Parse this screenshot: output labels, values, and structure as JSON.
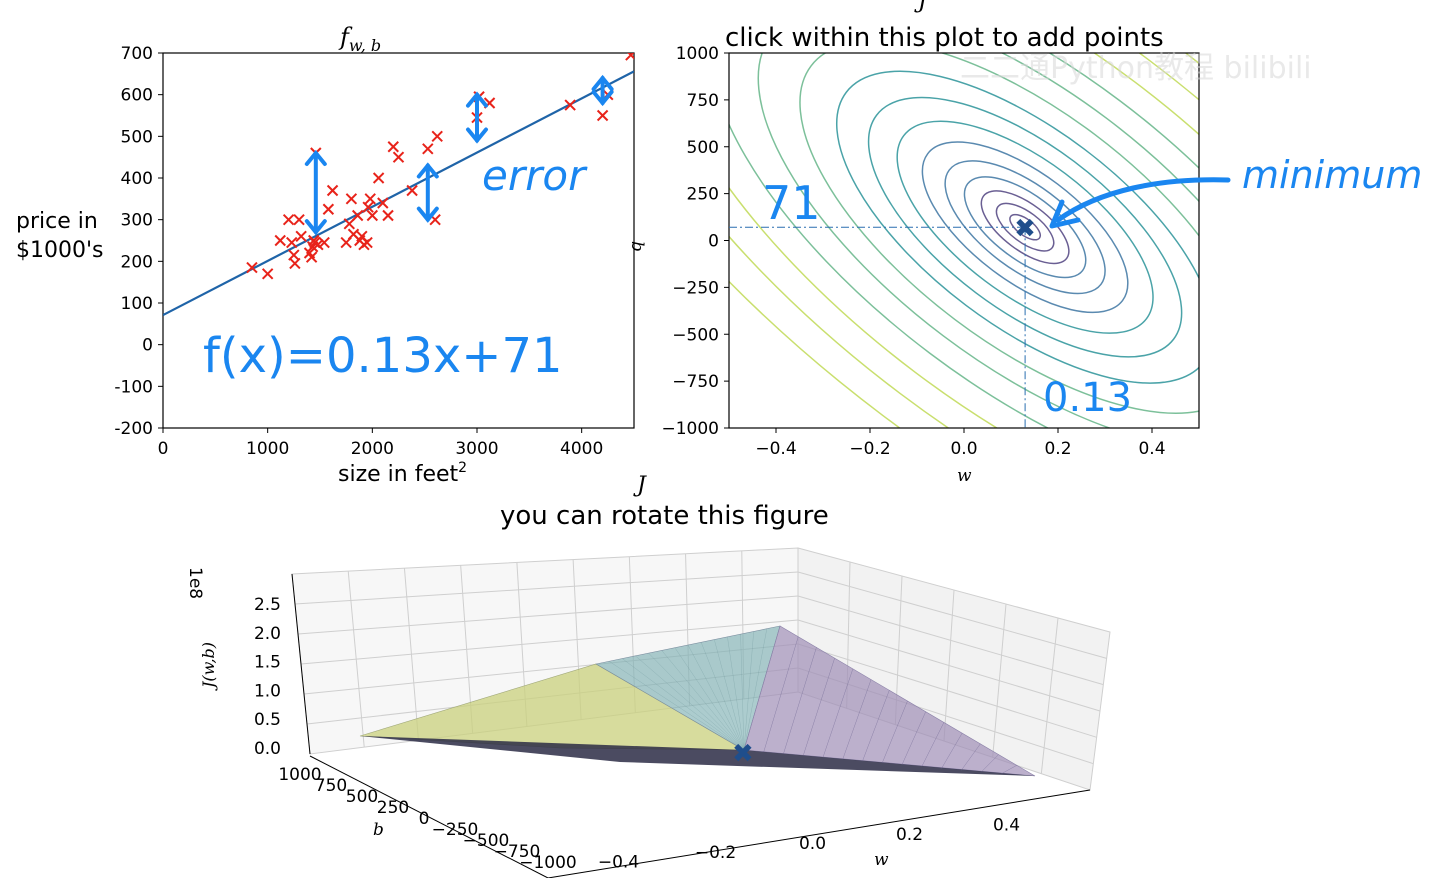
{
  "chart_data": [
    {
      "type": "scatter",
      "title": "f",
      "title_subscript": "w, b",
      "xlabel": "size in feet",
      "xlabel_superscript": "2",
      "ylabel_lines": [
        "price in",
        "$1000's"
      ],
      "xlim": [
        0,
        4500
      ],
      "ylim": [
        -200,
        700
      ],
      "xticks": [
        "0",
        "1000",
        "2000",
        "3000",
        "4000"
      ],
      "xtick_values": [
        0,
        1000,
        2000,
        3000,
        4000
      ],
      "yticks": [
        "700",
        "600",
        "500",
        "400",
        "300",
        "200",
        "100",
        "0",
        "-100",
        "-200"
      ],
      "ytick_values": [
        700,
        600,
        500,
        400,
        300,
        200,
        100,
        0,
        -100,
        -200
      ],
      "points_x": [
        850,
        1000,
        1120,
        1200,
        1230,
        1250,
        1260,
        1300,
        1320,
        1400,
        1420,
        1430,
        1440,
        1450,
        1460,
        1480,
        1540,
        1580,
        1620,
        1750,
        1780,
        1800,
        1820,
        1860,
        1880,
        1900,
        1920,
        1950,
        1960,
        1980,
        2000,
        2060,
        2100,
        2150,
        2200,
        2250,
        2380,
        2530,
        2600,
        2620,
        3000,
        3020,
        3120,
        3890,
        4200,
        4250,
        4470
      ],
      "points_y": [
        185,
        170,
        250,
        300,
        245,
        215,
        195,
        300,
        260,
        220,
        210,
        235,
        250,
        245,
        460,
        240,
        245,
        325,
        370,
        245,
        290,
        350,
        265,
        310,
        250,
        260,
        240,
        245,
        330,
        350,
        310,
        400,
        340,
        310,
        475,
        450,
        370,
        470,
        300,
        500,
        545,
        595,
        580,
        575,
        550,
        600,
        695
      ],
      "fit_line": {
        "slope": 0.13,
        "intercept": 71
      },
      "marker_color": "#e8231a",
      "line_color": "#1f64a8",
      "annotations": {
        "formula": "f(x)=0.13x+71",
        "error": "error"
      },
      "error_arrows": [
        {
          "x": 1460,
          "y1": 270,
          "y2": 460
        },
        {
          "x": 2530,
          "y1": 300,
          "y2": 430
        },
        {
          "x": 3000,
          "y1": 490,
          "y2": 600
        },
        {
          "x": 4200,
          "y1": 580,
          "y2": 640
        }
      ]
    },
    {
      "type": "contour",
      "title_top": "J",
      "title": "click within this plot to add points",
      "xlabel": "w",
      "ylabel": "b",
      "xlim": [
        -0.5,
        0.5
      ],
      "ylim": [
        -1000,
        1000
      ],
      "xticks": [
        "−0.4",
        "−0.2",
        "0.0",
        "0.2",
        "0.4"
      ],
      "xtick_values": [
        -0.4,
        -0.2,
        0.0,
        0.2,
        0.4
      ],
      "yticks": [
        "1000",
        "750",
        "500",
        "250",
        "0",
        "−250",
        "−500",
        "−750",
        "−1000"
      ],
      "ytick_values": [
        1000,
        750,
        500,
        250,
        0,
        -250,
        -500,
        -750,
        -1000
      ],
      "minimum": {
        "w": 0.13,
        "b": 71
      },
      "annotations": {
        "minimum": "minimum",
        "w_value": "0.13",
        "b_value": "71"
      },
      "colors": [
        "#6a5f93",
        "#5a8ab0",
        "#4aa3a8",
        "#7cc09a",
        "#c9df6e"
      ]
    },
    {
      "type": "surface3d",
      "title_top": "J",
      "title": "you can rotate this figure",
      "zlabel": "J(w,b)",
      "zscale": "1e8",
      "zticks": [
        "2.5",
        "2.0",
        "1.5",
        "1.0",
        "0.5",
        "0.0"
      ],
      "ztick_values": [
        2.5,
        2.0,
        1.5,
        1.0,
        0.5,
        0.0
      ],
      "xlabel": "w",
      "xticks": [
        "−0.4",
        "−0.2",
        "0.0",
        "0.2",
        "0.4"
      ],
      "xtick_values": [
        -0.4,
        -0.2,
        0.0,
        0.2,
        0.4
      ],
      "ylabel": "b",
      "yticks": [
        "1000",
        "750",
        "500",
        "250",
        "0",
        "−250",
        "−500",
        "−750",
        "−1000"
      ],
      "ytick_values": [
        1000,
        750,
        500,
        250,
        0,
        -250,
        -500,
        -750,
        -1000
      ],
      "minimum_marker": {
        "w": 0.13,
        "b": 71
      }
    }
  ],
  "watermark": "二二通Python教程 bilibili"
}
